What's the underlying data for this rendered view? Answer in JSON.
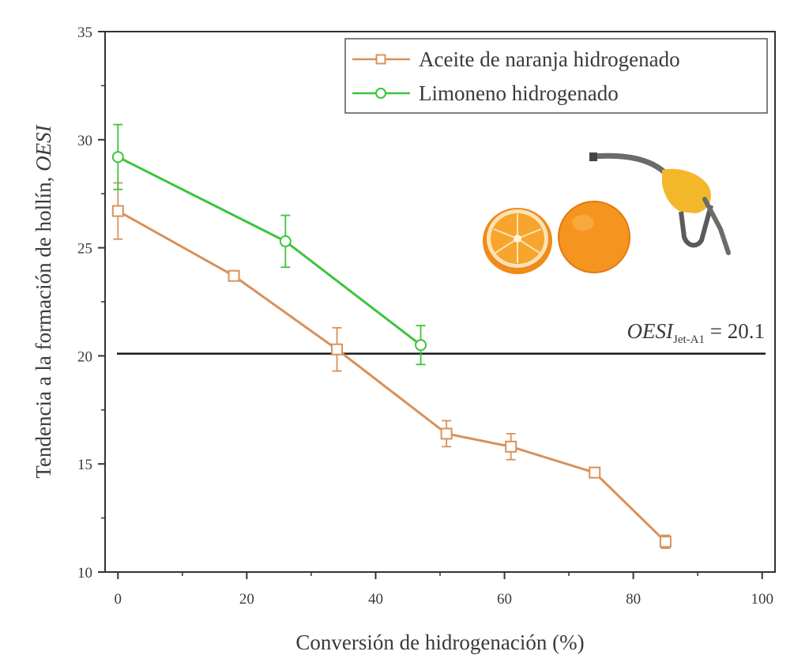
{
  "chart_data": {
    "type": "line",
    "xlabel": "Conversión de hidrogenación (%)",
    "ylabel_main": "Tendencia a la formación de hollín, ",
    "ylabel_italic": "OESI",
    "xlim": [
      -2,
      102
    ],
    "ylim": [
      10,
      35
    ],
    "xticks": [
      0,
      20,
      40,
      60,
      80,
      100
    ],
    "yticks": [
      10,
      15,
      20,
      25,
      30,
      35
    ],
    "grid": false,
    "legend_position": "top-right",
    "series": [
      {
        "name": "Aceite de naranja hidrogenado",
        "color": "#d8915a",
        "marker": "square",
        "x": [
          0,
          18,
          34,
          51,
          61,
          74,
          85
        ],
        "y": [
          26.7,
          23.7,
          20.3,
          16.4,
          15.8,
          14.6,
          11.4
        ],
        "err": [
          1.3,
          0.2,
          1.0,
          0.6,
          0.6,
          0.2,
          0.3
        ]
      },
      {
        "name": "Limoneno hidrogenado",
        "color": "#3cc43c",
        "marker": "circle",
        "x": [
          0,
          26,
          47
        ],
        "y": [
          29.2,
          25.3,
          20.5
        ],
        "err": [
          1.5,
          1.2,
          0.9
        ]
      }
    ],
    "reference_line": {
      "y": 20.1,
      "color": "#1a1a1a",
      "label_main": "OESI",
      "label_sub": "Jet-A1",
      "label_value": " = 20.1"
    }
  },
  "illustration": {
    "icons": [
      "orange-half-icon",
      "orange-whole-icon",
      "fuel-nozzle-icon"
    ],
    "colors": {
      "orange": "#f5941f",
      "nozzle_yellow": "#f2b72b",
      "nozzle_grey": "#6b6b6b"
    }
  }
}
